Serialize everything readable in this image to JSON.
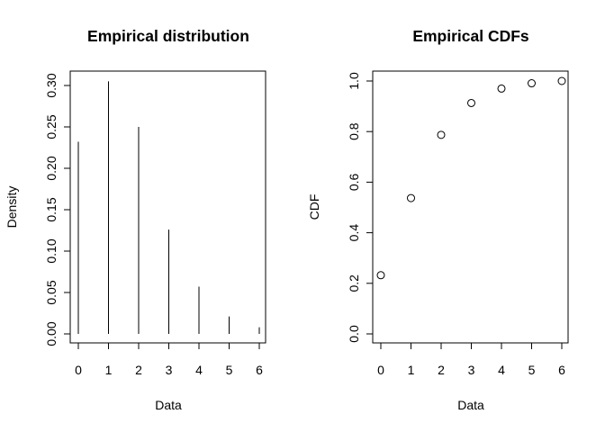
{
  "chart_data": [
    {
      "type": "bar",
      "title": "Empirical distribution",
      "xlabel": "Data",
      "ylabel": "Density",
      "x": [
        0,
        1,
        2,
        3,
        4,
        5,
        6
      ],
      "values": [
        0.232,
        0.305,
        0.25,
        0.126,
        0.057,
        0.021,
        0.008
      ],
      "xlim": [
        0,
        6
      ],
      "ylim": [
        0,
        0.3
      ],
      "xticks": [
        "0",
        "1",
        "2",
        "3",
        "4",
        "5",
        "6"
      ],
      "yticks": [
        "0.00",
        "0.05",
        "0.10",
        "0.15",
        "0.20",
        "0.25",
        "0.30"
      ],
      "grid": false
    },
    {
      "type": "scatter",
      "title": "Empirical CDFs",
      "xlabel": "Data",
      "ylabel": "CDF",
      "x": [
        0,
        1,
        2,
        3,
        4,
        5,
        6
      ],
      "values": [
        0.232,
        0.537,
        0.787,
        0.913,
        0.97,
        0.991,
        1.0
      ],
      "xlim": [
        0,
        6
      ],
      "ylim": [
        0,
        1
      ],
      "xticks": [
        "0",
        "1",
        "2",
        "3",
        "4",
        "5",
        "6"
      ],
      "yticks": [
        "0.0",
        "0.2",
        "0.4",
        "0.6",
        "0.8",
        "1.0"
      ],
      "grid": false
    }
  ]
}
